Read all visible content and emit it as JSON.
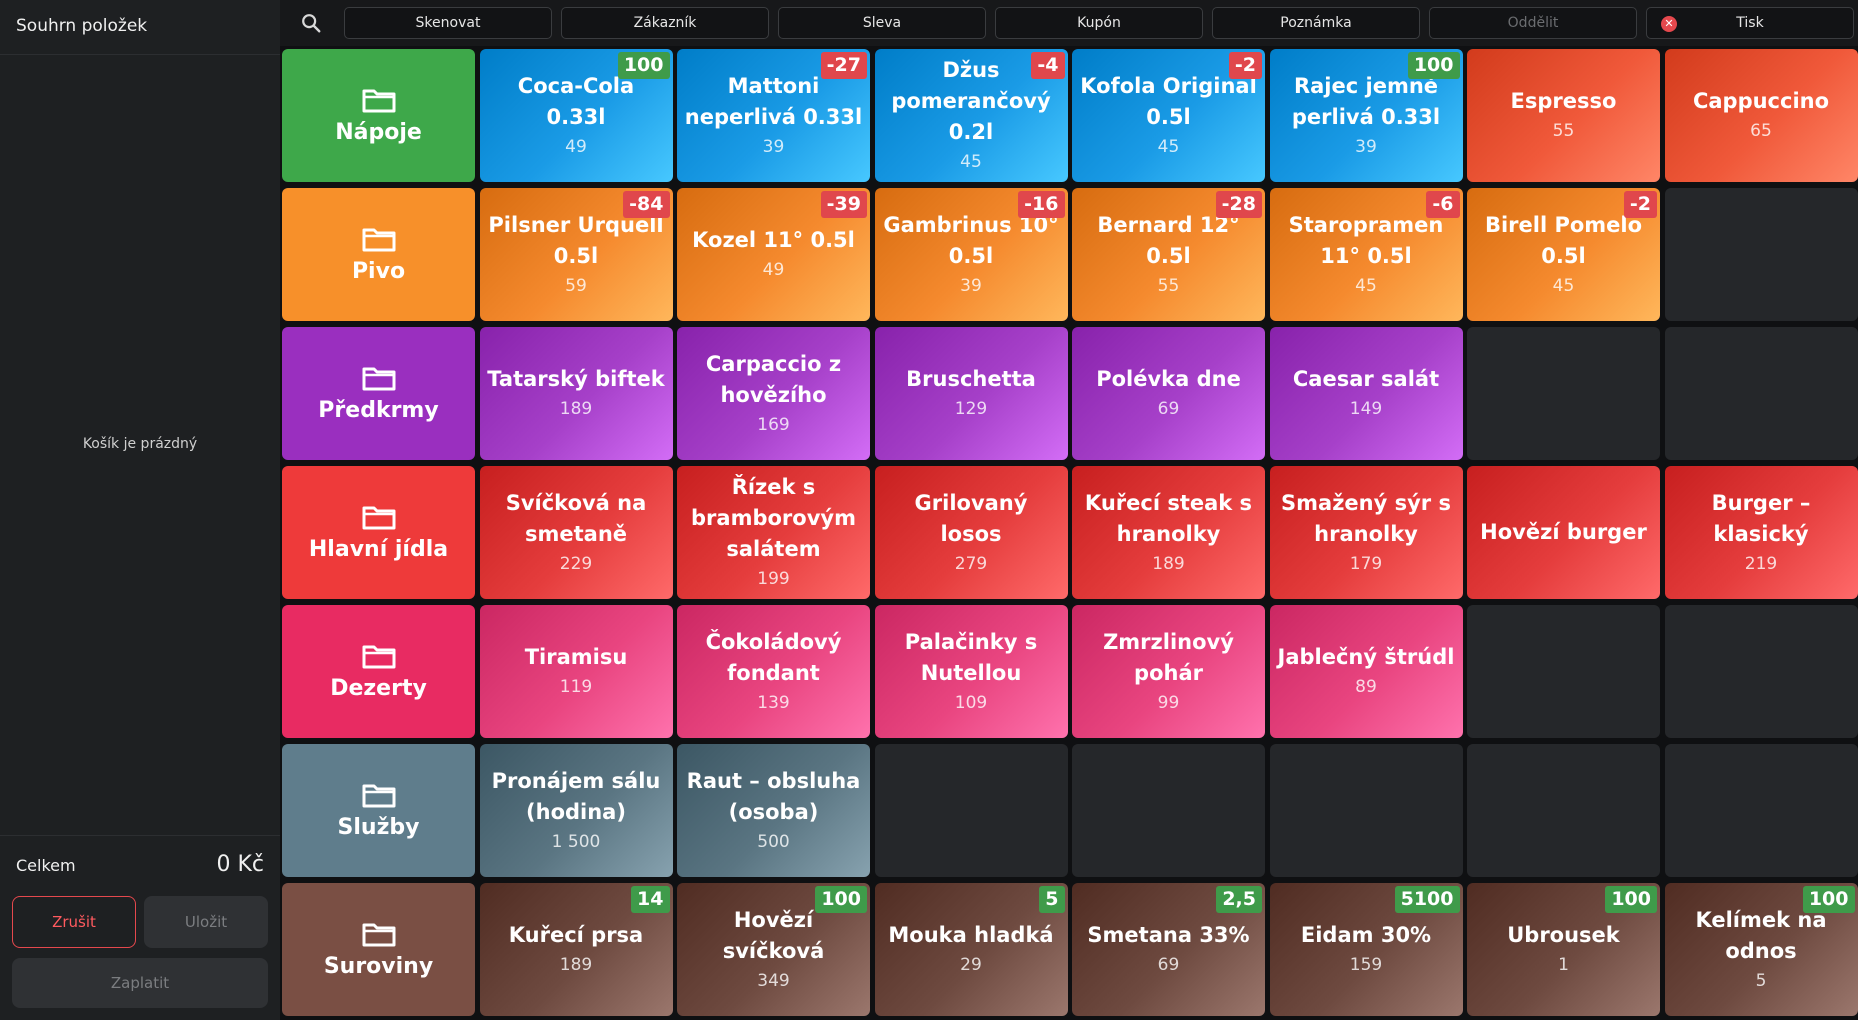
{
  "sidebar": {
    "title": "Souhrn položek",
    "empty_message": "Košík je prázdný",
    "total_label": "Celkem",
    "total_value": "0 Kč",
    "cancel_label": "Zrušit",
    "save_label": "Uložit",
    "pay_label": "Zaplatit"
  },
  "toolbar": {
    "search_icon": "search-icon",
    "buttons": [
      {
        "label": "Skenovat",
        "enabled": true
      },
      {
        "label": "Zákazník",
        "enabled": true
      },
      {
        "label": "Sleva",
        "enabled": true
      },
      {
        "label": "Kupón",
        "enabled": true
      },
      {
        "label": "Poznámka",
        "enabled": true
      },
      {
        "label": "Oddělit",
        "enabled": false
      },
      {
        "label": "Tisk",
        "enabled": true,
        "icon": "close-circle-icon"
      }
    ]
  },
  "colors": {
    "danger": "#e5484d",
    "badge_negative": "#e0474c",
    "badge_positive": "#3f9b4a"
  },
  "grid": {
    "rows": [
      {
        "category": {
          "name": "Nápoje",
          "icon": "folder-icon",
          "color": "#3ea84a"
        },
        "items": [
          {
            "name": "Coca-Cola 0.33l",
            "price": "49",
            "badge": "100",
            "badge_type": "positive",
            "color": "#1a9be6"
          },
          {
            "name": "Mattoni neperlivá 0.33l",
            "price": "39",
            "badge": "-27",
            "badge_type": "negative",
            "color": "#1a9be6"
          },
          {
            "name": "Džus pomerančový 0.2l",
            "price": "45",
            "badge": "-4",
            "badge_type": "negative",
            "color": "#1a9be6"
          },
          {
            "name": "Kofola Original 0.5l",
            "price": "45",
            "badge": "-2",
            "badge_type": "negative",
            "color": "#1a9be6"
          },
          {
            "name": "Rajec jemně perlivá 0.33l",
            "price": "39",
            "badge": "100",
            "badge_type": "positive",
            "color": "#1a9be6"
          },
          {
            "name": "Espresso",
            "price": "55",
            "badge": "",
            "badge_type": "",
            "color": "#f0593a"
          },
          {
            "name": "Cappuccino",
            "price": "65",
            "badge": "",
            "badge_type": "",
            "color": "#f0593a"
          }
        ]
      },
      {
        "category": {
          "name": "Pivo",
          "icon": "folder-icon",
          "color": "#f7902a"
        },
        "items": [
          {
            "name": "Pilsner Urquell 0.5l",
            "price": "59",
            "badge": "-84",
            "badge_type": "negative",
            "color": "#f58a2e"
          },
          {
            "name": "Kozel 11° 0.5l",
            "price": "49",
            "badge": "-39",
            "badge_type": "negative",
            "color": "#f58a2e"
          },
          {
            "name": "Gambrinus 10° 0.5l",
            "price": "39",
            "badge": "-16",
            "badge_type": "negative",
            "color": "#f58a2e"
          },
          {
            "name": "Bernard 12° 0.5l",
            "price": "55",
            "badge": "-28",
            "badge_type": "negative",
            "color": "#f58a2e"
          },
          {
            "name": "Staropramen 11° 0.5l",
            "price": "45",
            "badge": "-6",
            "badge_type": "negative",
            "color": "#f58a2e"
          },
          {
            "name": "Birell Pomelo 0.5l",
            "price": "45",
            "badge": "-2",
            "badge_type": "negative",
            "color": "#f58a2e"
          },
          null
        ]
      },
      {
        "category": {
          "name": "Předkrmy",
          "icon": "folder-icon",
          "color": "#9a2fbf"
        },
        "items": [
          {
            "name": "Tatarský biftek",
            "price": "189",
            "badge": "",
            "badge_type": "",
            "color": "#a640c9"
          },
          {
            "name": "Carpaccio z hovězího",
            "price": "169",
            "badge": "",
            "badge_type": "",
            "color": "#a640c9"
          },
          {
            "name": "Bruschetta",
            "price": "129",
            "badge": "",
            "badge_type": "",
            "color": "#a640c9"
          },
          {
            "name": "Polévka dne",
            "price": "69",
            "badge": "",
            "badge_type": "",
            "color": "#a640c9"
          },
          {
            "name": "Caesar salát",
            "price": "149",
            "badge": "",
            "badge_type": "",
            "color": "#a640c9"
          },
          null,
          null
        ]
      },
      {
        "category": {
          "name": "Hlavní jídla",
          "icon": "folder-icon",
          "color": "#ee3a3a"
        },
        "items": [
          {
            "name": "Svíčková na smetaně",
            "price": "229",
            "badge": "",
            "badge_type": "",
            "color": "#e53d3d"
          },
          {
            "name": "Řízek s bramborovým salátem",
            "price": "199",
            "badge": "",
            "badge_type": "",
            "color": "#e53d3d"
          },
          {
            "name": "Grilovaný losos",
            "price": "279",
            "badge": "",
            "badge_type": "",
            "color": "#e53d3d"
          },
          {
            "name": "Kuřecí steak s hranolky",
            "price": "189",
            "badge": "",
            "badge_type": "",
            "color": "#e53d3d"
          },
          {
            "name": "Smažený sýr s hranolky",
            "price": "179",
            "badge": "",
            "badge_type": "",
            "color": "#e53d3d"
          },
          {
            "name": "Hovězí burger",
            "price": "",
            "badge": "",
            "badge_type": "",
            "color": "#e53d3d"
          },
          {
            "name": "Burger – klasický",
            "price": "219",
            "badge": "",
            "badge_type": "",
            "color": "#e53d3d"
          }
        ]
      },
      {
        "category": {
          "name": "Dezerty",
          "icon": "folder-icon",
          "color": "#e82b62"
        },
        "items": [
          {
            "name": "Tiramisu",
            "price": "119",
            "badge": "",
            "badge_type": "",
            "color": "#e94580"
          },
          {
            "name": "Čokoládový fondant",
            "price": "139",
            "badge": "",
            "badge_type": "",
            "color": "#e94580"
          },
          {
            "name": "Palačinky s Nutellou",
            "price": "109",
            "badge": "",
            "badge_type": "",
            "color": "#e94580"
          },
          {
            "name": "Zmrzlinový pohár",
            "price": "99",
            "badge": "",
            "badge_type": "",
            "color": "#e94580"
          },
          {
            "name": "Jablečný štrúdl",
            "price": "89",
            "badge": "",
            "badge_type": "",
            "color": "#e94580"
          },
          null,
          null
        ]
      },
      {
        "category": {
          "name": "Služby",
          "icon": "folder-icon",
          "color": "#5f7d8c"
        },
        "items": [
          {
            "name": "Pronájem sálu (hodina)",
            "price": "1 500",
            "badge": "",
            "badge_type": "",
            "color": "#5a7582"
          },
          {
            "name": "Raut – obsluha (osoba)",
            "price": "500",
            "badge": "",
            "badge_type": "",
            "color": "#5a7582"
          },
          null,
          null,
          null,
          null,
          null
        ]
      },
      {
        "category": {
          "name": "Suroviny",
          "icon": "folder-icon",
          "color": "#7a4f44"
        },
        "items": [
          {
            "name": "Kuřecí prsa",
            "price": "189",
            "badge": "14",
            "badge_type": "positive",
            "color": "#6e4a40"
          },
          {
            "name": "Hovězí svíčková",
            "price": "349",
            "badge": "100",
            "badge_type": "positive",
            "color": "#6e4a40"
          },
          {
            "name": "Mouka hladká",
            "price": "29",
            "badge": "5",
            "badge_type": "positive",
            "color": "#6e4a40"
          },
          {
            "name": "Smetana 33%",
            "price": "69",
            "badge": "2,5",
            "badge_type": "positive",
            "color": "#6e4a40"
          },
          {
            "name": "Eidam 30%",
            "price": "159",
            "badge": "5100",
            "badge_type": "positive",
            "color": "#6e4a40"
          },
          {
            "name": "Ubrousek",
            "price": "1",
            "badge": "100",
            "badge_type": "positive",
            "color": "#6e4a40"
          },
          {
            "name": "Kelímek na odnos",
            "price": "5",
            "badge": "100",
            "badge_type": "positive",
            "color": "#6e4a40"
          }
        ]
      }
    ]
  }
}
